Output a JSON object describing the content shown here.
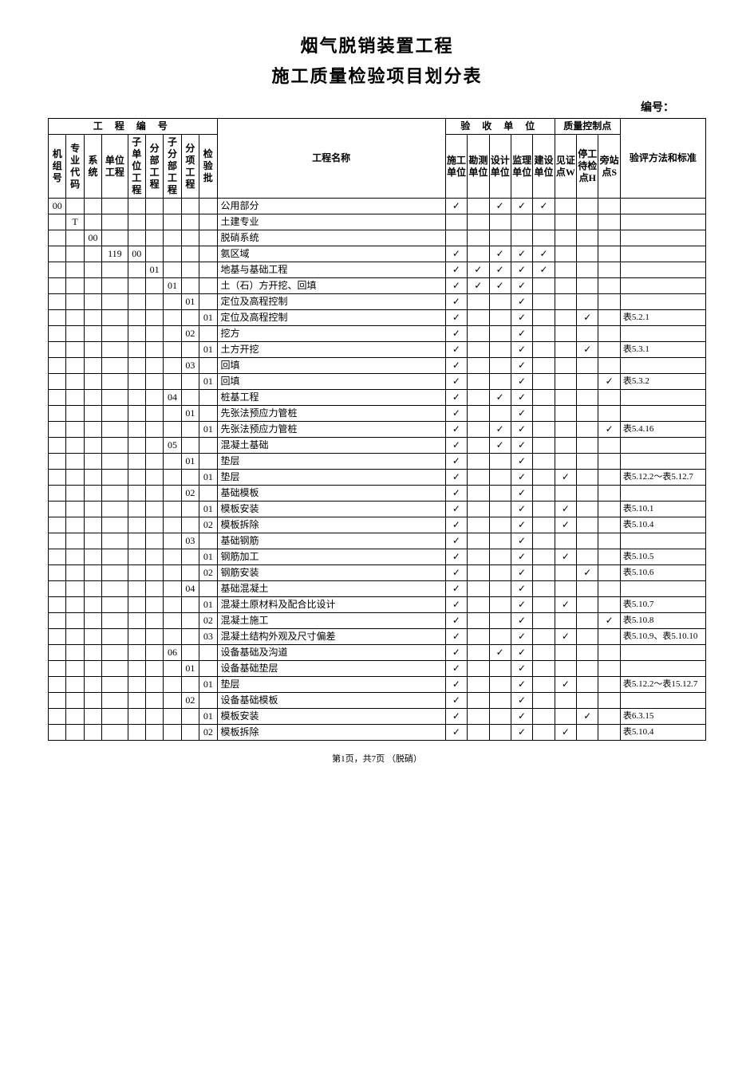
{
  "titles": {
    "line1": "烟气脱销装置工程",
    "line2": "施工质量检验项目划分表",
    "doc_no_label": "编号：",
    "footer": "第1页，共7页 （脱硝）"
  },
  "header": {
    "group_project_code": "工 程 编 号",
    "group_accept_unit": "验 收 单 位",
    "group_qc_point": "质量控制点",
    "cols": {
      "unit_no": "机组号",
      "spec_code": "专业代码",
      "system": "系统",
      "unit_proj": "单位工程",
      "sub_unit_proj": "子单位工程",
      "div_proj": "分部工程",
      "sub_div_proj": "子分部工程",
      "item_proj": "分项工程",
      "batch": "检验批",
      "proj_name": "工程名称",
      "construct_unit": "施工单位",
      "survey_unit": "勘测单位",
      "design_unit": "设计单位",
      "supervise_unit": "监理单位",
      "build_unit": "建设单位",
      "witness_w": "见证点W",
      "hold_h": "停工待检点H",
      "side_s": "旁站点S",
      "method_std": "验评方法和标准"
    }
  },
  "check_glyph": "✓",
  "rows": [
    {
      "c": [
        "00",
        "",
        "",
        "",
        "",
        "",
        "",
        "",
        ""
      ],
      "name": "公用部分",
      "u": [
        1,
        0,
        1,
        1,
        1
      ],
      "q": [
        0,
        0,
        0
      ],
      "std": ""
    },
    {
      "c": [
        "",
        "T",
        "",
        "",
        "",
        "",
        "",
        "",
        ""
      ],
      "name": "土建专业",
      "u": [
        0,
        0,
        0,
        0,
        0
      ],
      "q": [
        0,
        0,
        0
      ],
      "std": ""
    },
    {
      "c": [
        "",
        "",
        "00",
        "",
        "",
        "",
        "",
        "",
        ""
      ],
      "name": "脱硝系统",
      "u": [
        0,
        0,
        0,
        0,
        0
      ],
      "q": [
        0,
        0,
        0
      ],
      "std": ""
    },
    {
      "c": [
        "",
        "",
        "",
        "119",
        "00",
        "",
        "",
        "",
        ""
      ],
      "name": "氨区域",
      "u": [
        1,
        0,
        1,
        1,
        1
      ],
      "q": [
        0,
        0,
        0
      ],
      "std": ""
    },
    {
      "c": [
        "",
        "",
        "",
        "",
        "",
        "01",
        "",
        "",
        ""
      ],
      "name": "地基与基础工程",
      "u": [
        1,
        1,
        1,
        1,
        1
      ],
      "q": [
        0,
        0,
        0
      ],
      "std": ""
    },
    {
      "c": [
        "",
        "",
        "",
        "",
        "",
        "",
        "01",
        "",
        ""
      ],
      "name": "土（石）方开挖、回填",
      "u": [
        1,
        1,
        1,
        1,
        0
      ],
      "q": [
        0,
        0,
        0
      ],
      "std": ""
    },
    {
      "c": [
        "",
        "",
        "",
        "",
        "",
        "",
        "",
        "01",
        ""
      ],
      "name": "定位及高程控制",
      "u": [
        1,
        0,
        0,
        1,
        0
      ],
      "q": [
        0,
        0,
        0
      ],
      "std": ""
    },
    {
      "c": [
        "",
        "",
        "",
        "",
        "",
        "",
        "",
        "",
        "01"
      ],
      "name": "定位及高程控制",
      "u": [
        1,
        0,
        0,
        1,
        0
      ],
      "q": [
        0,
        1,
        0
      ],
      "std": "表5.2.1"
    },
    {
      "c": [
        "",
        "",
        "",
        "",
        "",
        "",
        "",
        "02",
        ""
      ],
      "name": "挖方",
      "u": [
        1,
        0,
        0,
        1,
        0
      ],
      "q": [
        0,
        0,
        0
      ],
      "std": ""
    },
    {
      "c": [
        "",
        "",
        "",
        "",
        "",
        "",
        "",
        "",
        "01"
      ],
      "name": "土方开挖",
      "u": [
        1,
        0,
        0,
        1,
        0
      ],
      "q": [
        0,
        1,
        0
      ],
      "std": "表5.3.1"
    },
    {
      "c": [
        "",
        "",
        "",
        "",
        "",
        "",
        "",
        "03",
        ""
      ],
      "name": "回填",
      "u": [
        1,
        0,
        0,
        1,
        0
      ],
      "q": [
        0,
        0,
        0
      ],
      "std": ""
    },
    {
      "c": [
        "",
        "",
        "",
        "",
        "",
        "",
        "",
        "",
        "01"
      ],
      "name": "回填",
      "u": [
        1,
        0,
        0,
        1,
        0
      ],
      "q": [
        0,
        0,
        1
      ],
      "std": "表5.3.2"
    },
    {
      "c": [
        "",
        "",
        "",
        "",
        "",
        "",
        "04",
        "",
        ""
      ],
      "name": "桩基工程",
      "u": [
        1,
        0,
        1,
        1,
        0
      ],
      "q": [
        0,
        0,
        0
      ],
      "std": ""
    },
    {
      "c": [
        "",
        "",
        "",
        "",
        "",
        "",
        "",
        "01",
        ""
      ],
      "name": "先张法预应力管桩",
      "u": [
        1,
        0,
        0,
        1,
        0
      ],
      "q": [
        0,
        0,
        0
      ],
      "std": ""
    },
    {
      "c": [
        "",
        "",
        "",
        "",
        "",
        "",
        "",
        "",
        "01"
      ],
      "name": "先张法预应力管桩",
      "u": [
        1,
        0,
        1,
        1,
        0
      ],
      "q": [
        0,
        0,
        1
      ],
      "std": "表5.4.16"
    },
    {
      "c": [
        "",
        "",
        "",
        "",
        "",
        "",
        "05",
        "",
        ""
      ],
      "name": "混凝土基础",
      "u": [
        1,
        0,
        1,
        1,
        0
      ],
      "q": [
        0,
        0,
        0
      ],
      "std": ""
    },
    {
      "c": [
        "",
        "",
        "",
        "",
        "",
        "",
        "",
        "01",
        ""
      ],
      "name": "垫层",
      "u": [
        1,
        0,
        0,
        1,
        0
      ],
      "q": [
        0,
        0,
        0
      ],
      "std": ""
    },
    {
      "c": [
        "",
        "",
        "",
        "",
        "",
        "",
        "",
        "",
        "01"
      ],
      "name": "垫层",
      "u": [
        1,
        0,
        0,
        1,
        0
      ],
      "q": [
        1,
        0,
        0
      ],
      "std": "表5.12.2～表5.12.7"
    },
    {
      "c": [
        "",
        "",
        "",
        "",
        "",
        "",
        "",
        "02",
        ""
      ],
      "name": "基础模板",
      "u": [
        1,
        0,
        0,
        1,
        0
      ],
      "q": [
        0,
        0,
        0
      ],
      "std": ""
    },
    {
      "c": [
        "",
        "",
        "",
        "",
        "",
        "",
        "",
        "",
        "01"
      ],
      "name": "模板安装",
      "u": [
        1,
        0,
        0,
        1,
        0
      ],
      "q": [
        1,
        0,
        0
      ],
      "std": "表5.10.1"
    },
    {
      "c": [
        "",
        "",
        "",
        "",
        "",
        "",
        "",
        "",
        "02"
      ],
      "name": "模板拆除",
      "u": [
        1,
        0,
        0,
        1,
        0
      ],
      "q": [
        1,
        0,
        0
      ],
      "std": "表5.10.4"
    },
    {
      "c": [
        "",
        "",
        "",
        "",
        "",
        "",
        "",
        "03",
        ""
      ],
      "name": "基础钢筋",
      "u": [
        1,
        0,
        0,
        1,
        0
      ],
      "q": [
        0,
        0,
        0
      ],
      "std": ""
    },
    {
      "c": [
        "",
        "",
        "",
        "",
        "",
        "",
        "",
        "",
        "01"
      ],
      "name": "钢筋加工",
      "u": [
        1,
        0,
        0,
        1,
        0
      ],
      "q": [
        1,
        0,
        0
      ],
      "std": "表5.10.5"
    },
    {
      "c": [
        "",
        "",
        "",
        "",
        "",
        "",
        "",
        "",
        "02"
      ],
      "name": "钢筋安装",
      "u": [
        1,
        0,
        0,
        1,
        0
      ],
      "q": [
        0,
        1,
        0
      ],
      "std": "表5.10.6"
    },
    {
      "c": [
        "",
        "",
        "",
        "",
        "",
        "",
        "",
        "04",
        ""
      ],
      "name": "基础混凝土",
      "u": [
        1,
        0,
        0,
        1,
        0
      ],
      "q": [
        0,
        0,
        0
      ],
      "std": ""
    },
    {
      "c": [
        "",
        "",
        "",
        "",
        "",
        "",
        "",
        "",
        "01"
      ],
      "name": "混凝土原材料及配合比设计",
      "u": [
        1,
        0,
        0,
        1,
        0
      ],
      "q": [
        1,
        0,
        0
      ],
      "std": "表5.10.7"
    },
    {
      "c": [
        "",
        "",
        "",
        "",
        "",
        "",
        "",
        "",
        "02"
      ],
      "name": "混凝土施工",
      "u": [
        1,
        0,
        0,
        1,
        0
      ],
      "q": [
        0,
        0,
        1
      ],
      "std": "表5.10.8"
    },
    {
      "c": [
        "",
        "",
        "",
        "",
        "",
        "",
        "",
        "",
        "03"
      ],
      "name": "混凝土结构外观及尺寸偏差",
      "u": [
        1,
        0,
        0,
        1,
        0
      ],
      "q": [
        1,
        0,
        0
      ],
      "std": "表5.10.9、表5.10.10"
    },
    {
      "c": [
        "",
        "",
        "",
        "",
        "",
        "",
        "06",
        "",
        ""
      ],
      "name": "设备基础及沟道",
      "u": [
        1,
        0,
        1,
        1,
        0
      ],
      "q": [
        0,
        0,
        0
      ],
      "std": ""
    },
    {
      "c": [
        "",
        "",
        "",
        "",
        "",
        "",
        "",
        "01",
        ""
      ],
      "name": "设备基础垫层",
      "u": [
        1,
        0,
        0,
        1,
        0
      ],
      "q": [
        0,
        0,
        0
      ],
      "std": ""
    },
    {
      "c": [
        "",
        "",
        "",
        "",
        "",
        "",
        "",
        "",
        "01"
      ],
      "name": "垫层",
      "u": [
        1,
        0,
        0,
        1,
        0
      ],
      "q": [
        1,
        0,
        0
      ],
      "std": "表5.12.2～表15.12.7"
    },
    {
      "c": [
        "",
        "",
        "",
        "",
        "",
        "",
        "",
        "02",
        ""
      ],
      "name": "设备基础模板",
      "u": [
        1,
        0,
        0,
        1,
        0
      ],
      "q": [
        0,
        0,
        0
      ],
      "std": ""
    },
    {
      "c": [
        "",
        "",
        "",
        "",
        "",
        "",
        "",
        "",
        "01"
      ],
      "name": "模板安装",
      "u": [
        1,
        0,
        0,
        1,
        0
      ],
      "q": [
        0,
        1,
        0
      ],
      "std": "表6.3.15"
    },
    {
      "c": [
        "",
        "",
        "",
        "",
        "",
        "",
        "",
        "",
        "02"
      ],
      "name": "模板拆除",
      "u": [
        1,
        0,
        0,
        1,
        0
      ],
      "q": [
        1,
        0,
        0
      ],
      "std": "表5.10.4"
    }
  ]
}
